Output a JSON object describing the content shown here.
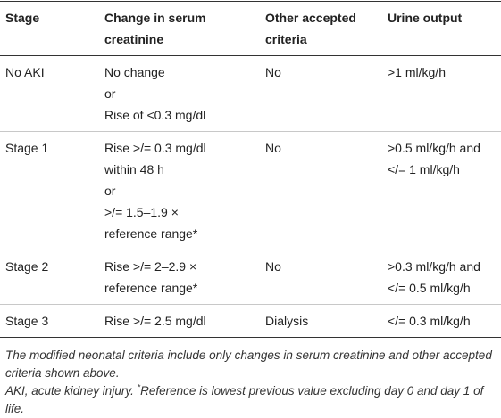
{
  "table": {
    "header": [
      "Stage",
      "Change in serum creatinine",
      "Other accepted criteria",
      "Urine output"
    ],
    "rows": [
      [
        [
          "No AKI"
        ],
        [
          "No change",
          "or",
          "Rise of <0.3 mg/dl"
        ],
        [
          "No"
        ],
        [
          ">1 ml/kg/h"
        ]
      ],
      [
        [
          "Stage 1"
        ],
        [
          "Rise >/= 0.3 mg/dl",
          "within 48 h",
          "or",
          ">/= 1.5–1.9 ×",
          "reference range*"
        ],
        [
          "No"
        ],
        [
          ">0.5 ml/kg/h and",
          "</= 1 ml/kg/h"
        ]
      ],
      [
        [
          "Stage 2"
        ],
        [
          "Rise >/= 2–2.9 ×",
          "reference range*"
        ],
        [
          "No"
        ],
        [
          ">0.3 ml/kg/h and",
          "</= 0.5 ml/kg/h"
        ]
      ],
      [
        [
          "Stage 3"
        ],
        [
          "Rise >/= 2.5 mg/dl"
        ],
        [
          "Dialysis"
        ],
        [
          "</= 0.3 ml/kg/h"
        ]
      ]
    ]
  },
  "footnotes": [
    "The modified neonatal criteria include only changes in serum creatinine and other accepted criteria shown above.",
    {
      "text": "AKI, acute kidney injury. ",
      "marker": "*",
      "note": "Reference is lowest previous value excluding day 0 and day 1 of life."
    }
  ]
}
